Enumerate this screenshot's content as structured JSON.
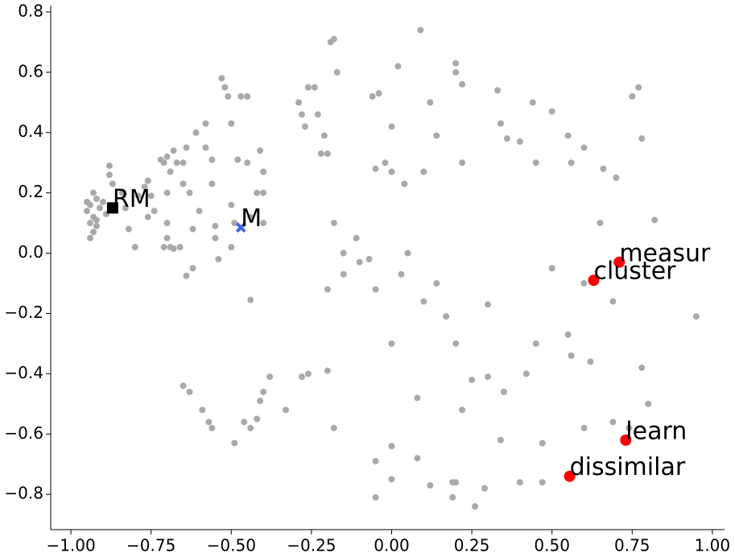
{
  "chart_data": {
    "type": "scatter",
    "xlim": [
      -1.063,
      1.038
    ],
    "ylim": [
      -0.917,
      0.821
    ],
    "xticks": [
      {
        "value": -1.0,
        "label": "−1.00"
      },
      {
        "value": -0.75,
        "label": "−0.75"
      },
      {
        "value": -0.5,
        "label": "−0.50"
      },
      {
        "value": -0.25,
        "label": "−0.25"
      },
      {
        "value": 0,
        "label": "0.00"
      },
      {
        "value": 0.25,
        "label": "0.25"
      },
      {
        "value": 0.5,
        "label": "0.50"
      },
      {
        "value": 0.75,
        "label": "0.75"
      },
      {
        "value": 1.0,
        "label": "1.00"
      }
    ],
    "yticks": [
      {
        "value": -0.8,
        "label": "−0.8"
      },
      {
        "value": -0.6,
        "label": "−0.6"
      },
      {
        "value": -0.4,
        "label": "−0.4"
      },
      {
        "value": -0.2,
        "label": "−0.2"
      },
      {
        "value": 0,
        "label": "0.0"
      },
      0.2,
      0.4,
      0.6,
      0.8
    ],
    "series": [
      {
        "color": "#a9a9a9",
        "marker": "circle",
        "x": [
          -0.95,
          -0.94,
          -0.93,
          -0.92,
          -0.94,
          -0.93,
          -0.91,
          -0.95,
          -0.92,
          -0.9,
          -0.89,
          -0.93,
          -0.94,
          -0.92,
          -0.88,
          -0.88,
          -0.87,
          -0.84,
          -0.83,
          -0.82,
          -0.8,
          -0.79,
          -0.77,
          -0.76,
          -0.76,
          -0.75,
          -0.74,
          -0.72,
          -0.71,
          -0.7,
          -0.69,
          -0.7,
          -0.7,
          -0.7,
          -0.71,
          -0.69,
          -0.68,
          -0.66,
          -0.68,
          -0.67,
          -0.65,
          -0.64,
          -0.65,
          -0.63,
          -0.64,
          -0.62,
          -0.62,
          -0.6,
          -0.61,
          -0.58,
          -0.58,
          -0.56,
          -0.56,
          -0.55,
          -0.55,
          -0.54,
          -0.53,
          -0.52,
          -0.51,
          -0.5,
          -0.5,
          -0.5,
          -0.49,
          -0.48,
          -0.47,
          -0.45,
          -0.45,
          -0.44,
          -0.44,
          -0.42,
          -0.41,
          -0.4,
          -0.4,
          -0.4,
          -0.29,
          -0.28,
          -0.27,
          -0.26,
          -0.24,
          -0.23,
          -0.21,
          -0.19,
          -0.18,
          -0.17,
          -0.2,
          -0.22,
          -0.18,
          -0.15,
          -0.15,
          -0.11,
          -0.1,
          -0.07,
          -0.06,
          -0.04,
          -0.05,
          -0.02,
          0.0,
          0.0,
          0.02,
          0.04,
          0.05,
          0.09,
          0.1,
          0.12,
          0.14,
          0.2,
          0.2,
          0.22,
          0.22,
          0.33,
          0.34,
          0.36,
          0.4,
          0.44,
          0.45,
          0.5,
          0.55,
          0.56,
          0.6,
          0.66,
          0.7,
          0.75,
          0.77,
          0.78,
          0.82,
          0.95,
          0.78,
          0.8,
          0.7,
          0.69,
          0.74,
          0.69,
          0.6,
          0.47,
          0.47,
          0.4,
          0.34,
          0.29,
          0.26,
          0.19,
          0.19,
          0.12,
          0.0,
          0.0,
          -0.05,
          -0.05,
          0.08,
          0.08,
          0.2,
          0.22,
          0.3,
          -0.65,
          -0.63,
          -0.59,
          -0.57,
          -0.56,
          -0.49,
          -0.46,
          -0.44,
          -0.42,
          -0.41,
          -0.4,
          -0.38,
          -0.33,
          -0.28,
          -0.26,
          -0.2,
          -0.18,
          -0.2,
          -0.05,
          0.0,
          0.03,
          0.1,
          0.14,
          0.17,
          0.2,
          0.25,
          0.3,
          0.35,
          0.42,
          0.45,
          0.5,
          0.55,
          0.56,
          0.62,
          0.65,
          0.6
        ],
        "y": [
          0.14,
          0.16,
          0.12,
          0.18,
          0.1,
          0.2,
          0.15,
          0.17,
          0.11,
          0.17,
          0.13,
          0.07,
          0.05,
          0.09,
          0.29,
          0.26,
          0.23,
          0.2,
          0.15,
          0.08,
          0.02,
          0.19,
          0.22,
          0.24,
          0.12,
          0.19,
          0.14,
          0.31,
          0.3,
          0.32,
          0.27,
          0.2,
          0.1,
          0.05,
          0.02,
          0.02,
          0.015,
          0.02,
          0.34,
          0.3,
          0.3,
          0.35,
          0.23,
          0.2,
          -0.075,
          -0.05,
          0.08,
          0.14,
          0.4,
          0.43,
          0.35,
          0.31,
          0.23,
          0.09,
          0.05,
          -0.02,
          0.58,
          0.55,
          0.52,
          0.43,
          0.16,
          0.02,
          0.1,
          0.31,
          0.52,
          0.52,
          0.3,
          0.12,
          -0.155,
          0.2,
          0.34,
          0.27,
          0.2,
          0.1,
          0.5,
          0.46,
          0.42,
          0.55,
          0.55,
          0.46,
          0.39,
          0.7,
          0.71,
          0.6,
          0.33,
          0.33,
          0.1,
          0.0,
          -0.07,
          0.05,
          -0.03,
          -0.02,
          0.52,
          0.53,
          0.28,
          0.3,
          0.42,
          0.27,
          0.62,
          0.23,
          0.0,
          0.74,
          0.27,
          0.5,
          0.39,
          0.63,
          0.6,
          0.56,
          0.3,
          0.54,
          0.43,
          0.38,
          0.37,
          0.5,
          0.3,
          0.47,
          0.39,
          0.3,
          0.35,
          0.28,
          0.25,
          0.52,
          0.55,
          0.38,
          0.11,
          -0.21,
          -0.38,
          -0.5,
          -0.03,
          -0.16,
          -0.58,
          -0.56,
          -0.58,
          -0.63,
          -0.76,
          -0.76,
          -0.62,
          -0.78,
          -0.84,
          -0.81,
          -0.76,
          -0.77,
          -0.64,
          -0.75,
          -0.81,
          -0.69,
          -0.68,
          -0.48,
          -0.76,
          -0.52,
          -0.41,
          -0.44,
          -0.46,
          -0.52,
          -0.56,
          -0.58,
          -0.63,
          -0.56,
          -0.58,
          -0.55,
          -0.49,
          -0.46,
          -0.41,
          -0.52,
          -0.41,
          -0.4,
          -0.39,
          -0.58,
          -0.12,
          -0.12,
          -0.3,
          -0.07,
          -0.16,
          -0.1,
          -0.21,
          -0.3,
          -0.42,
          -0.17,
          -0.46,
          -0.4,
          -0.3,
          -0.05,
          -0.27,
          -0.34,
          -0.36,
          0.1,
          -0.1
        ]
      },
      {
        "color": "#000000",
        "marker": "square",
        "x": [
          -0.87
        ],
        "y": [
          0.15
        ],
        "labels": [
          "RM"
        ]
      },
      {
        "color": "#4169e1",
        "marker": "x",
        "x": [
          -0.47
        ],
        "y": [
          0.085
        ],
        "labels": [
          "M"
        ]
      },
      {
        "color": "#ff0000",
        "marker": "big-circle",
        "x": [
          0.71,
          0.63,
          0.73,
          0.555
        ],
        "y": [
          -0.03,
          -0.09,
          -0.62,
          -0.74
        ],
        "labels": [
          "measur",
          "cluster",
          "learn",
          "dissimilar"
        ]
      }
    ]
  }
}
